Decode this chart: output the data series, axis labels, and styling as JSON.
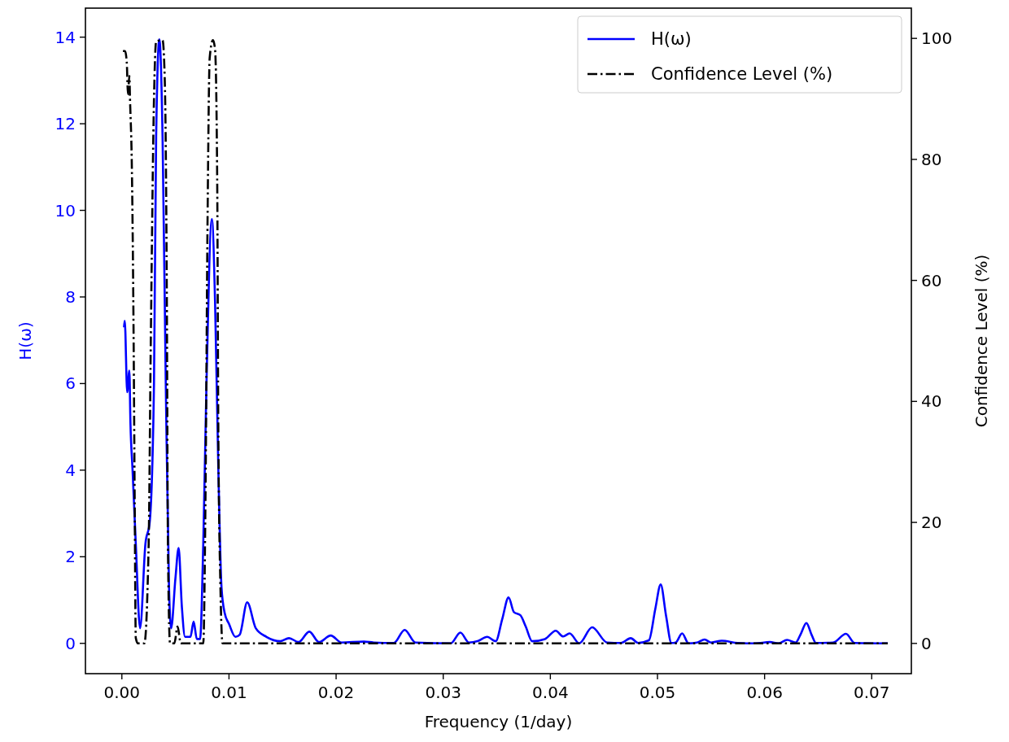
{
  "chart_data": {
    "type": "line",
    "xlabel": "Frequency (1/day)",
    "ylabel": "H(ω)",
    "y2label": "Confidence Level (%)",
    "xlim": [
      -0.0034,
      0.0737
    ],
    "xticks": [
      {
        "value": 0,
        "label": "0.00"
      },
      {
        "value": 0.01,
        "label": "0.01"
      },
      {
        "value": 0.02,
        "label": "0.02"
      },
      {
        "value": 0.03,
        "label": "0.03"
      },
      {
        "value": 0.04,
        "label": "0.04"
      },
      {
        "value": 0.05,
        "label": "0.05"
      },
      {
        "value": 0.06,
        "label": "0.06"
      },
      {
        "value": 0.07,
        "label": "0.07"
      }
    ],
    "ylim": [
      -0.7,
      14.67
    ],
    "yticks": [
      0,
      2,
      4,
      6,
      8,
      10,
      12,
      14
    ],
    "y2lim": [
      -5,
      105
    ],
    "y2ticks": [
      0,
      20,
      40,
      60,
      80,
      100
    ],
    "legend": "top right",
    "grid": false,
    "series": [
      {
        "name": "H(ω)",
        "color": "#0000ff",
        "line_style": "solid",
        "x": [
          0.0002,
          0.00027,
          0.0005,
          0.0007,
          0.0008,
          0.001,
          0.0013,
          0.0017,
          0.0022,
          0.0026,
          0.003,
          0.0032,
          0.0035,
          0.0038,
          0.0041,
          0.0044,
          0.0046,
          0.005,
          0.0053,
          0.0056,
          0.0059,
          0.0064,
          0.0067,
          0.007,
          0.0073,
          0.0076,
          0.0079,
          0.0084,
          0.0087,
          0.009,
          0.0093,
          0.0096,
          0.01,
          0.0106,
          0.011,
          0.0117,
          0.0125,
          0.0135,
          0.0148,
          0.0156,
          0.0165,
          0.0175,
          0.0184,
          0.0195,
          0.0205,
          0.0226,
          0.0235,
          0.0254,
          0.0264,
          0.0274,
          0.0307,
          0.0316,
          0.0324,
          0.0332,
          0.0341,
          0.0349,
          0.0355,
          0.0361,
          0.0366,
          0.0372,
          0.0377,
          0.0383,
          0.0395,
          0.0405,
          0.0412,
          0.0418,
          0.0427,
          0.0439,
          0.0453,
          0.0466,
          0.0475,
          0.0482,
          0.0492,
          0.0498,
          0.0503,
          0.0508,
          0.0513,
          0.0517,
          0.0523,
          0.0529,
          0.0537,
          0.0544,
          0.055,
          0.056,
          0.0575,
          0.0591,
          0.0605,
          0.0613,
          0.0621,
          0.0629,
          0.0634,
          0.0639,
          0.0644,
          0.0648,
          0.0664,
          0.0676,
          0.0684,
          0.0715
        ],
        "values": [
          7.3,
          7.45,
          5.8,
          6.3,
          5.1,
          4.0,
          2.3,
          0.35,
          2.3,
          2.8,
          6.0,
          11.7,
          13.95,
          11.7,
          6.0,
          1.3,
          0.35,
          1.5,
          2.2,
          0.85,
          0.15,
          0.15,
          0.5,
          0.1,
          0.1,
          2.3,
          6.0,
          9.8,
          7.9,
          4.1,
          1.3,
          0.7,
          0.45,
          0.15,
          0.2,
          0.95,
          0.35,
          0.15,
          0.05,
          0.12,
          0.03,
          0.27,
          0.03,
          0.18,
          0.02,
          0.04,
          0.02,
          0.01,
          0.31,
          0.02,
          0,
          0.25,
          0.02,
          0.05,
          0.15,
          0.05,
          0.55,
          1.06,
          0.72,
          0.65,
          0.39,
          0.05,
          0.1,
          0.29,
          0.16,
          0.23,
          0,
          0.37,
          0.02,
          0.01,
          0.12,
          0.01,
          0.07,
          0.8,
          1.36,
          0.64,
          0.01,
          0.02,
          0.23,
          0,
          0.02,
          0.09,
          0.02,
          0.06,
          0.01,
          0,
          0.03,
          0,
          0.08,
          0.02,
          0.23,
          0.47,
          0.19,
          0.01,
          0.02,
          0.22,
          0.01,
          0
        ]
      },
      {
        "name": "Confidence Level (%)",
        "color": "#000000",
        "axis": "y2",
        "line_style": "dashdot",
        "x": [
          0.0001,
          0.0003,
          0.00046,
          0.00057,
          0.0007,
          0.00076,
          0.00095,
          0.0011,
          0.0012,
          0.0013,
          0.0015,
          0.0021,
          0.0025,
          0.0027,
          0.003,
          0.0032,
          0.0038,
          0.004,
          0.0042,
          0.0043,
          0.0045,
          0.0049,
          0.0052,
          0.0055,
          0.0076,
          0.0078,
          0.008,
          0.0082,
          0.0085,
          0.0087,
          0.0089,
          0.009,
          0.0092,
          0.0094,
          0.0715
        ],
        "values": [
          97.9,
          97.9,
          96,
          90.8,
          93.8,
          90,
          76.7,
          49.8,
          22.9,
          0.9,
          0,
          0,
          16.3,
          49.8,
          90,
          99.5,
          99.7,
          93.5,
          56.5,
          16.3,
          0,
          0,
          2.8,
          0,
          0,
          23,
          70,
          96.8,
          99.7,
          98.2,
          76.7,
          36.4,
          9.5,
          0,
          0
        ]
      }
    ]
  }
}
